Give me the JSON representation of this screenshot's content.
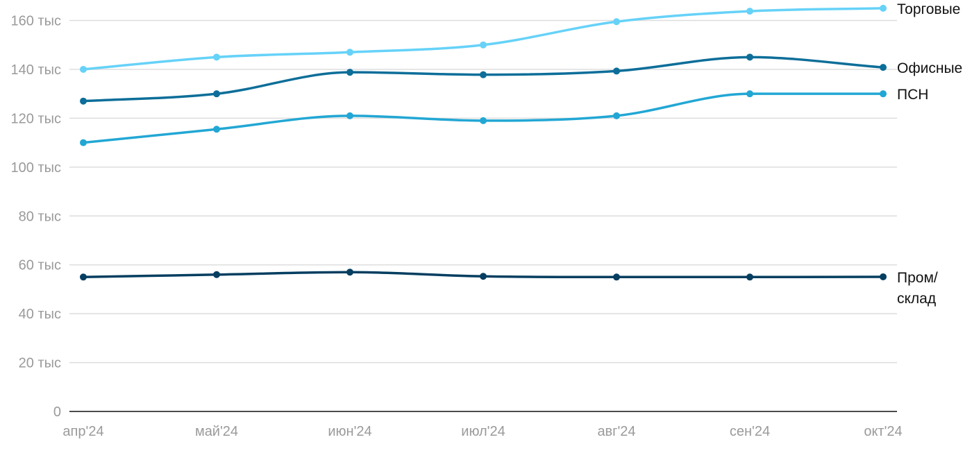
{
  "chart_data": {
    "type": "line",
    "title": "",
    "xlabel": "",
    "ylabel": "",
    "categories": [
      "апр'24",
      "май'24",
      "июн'24",
      "июл'24",
      "авг'24",
      "сен'24",
      "окт'24"
    ],
    "ylim": [
      0,
      165000
    ],
    "yticks": [
      {
        "value": 0,
        "label": "0"
      },
      {
        "value": 20000,
        "label": "20 тыс"
      },
      {
        "value": 40000,
        "label": "40 тыс"
      },
      {
        "value": 60000,
        "label": "60 тыс"
      },
      {
        "value": 80000,
        "label": "80 тыс"
      },
      {
        "value": 100000,
        "label": "100 тыс"
      },
      {
        "value": 120000,
        "label": "120 тыс"
      },
      {
        "value": 140000,
        "label": "140 тыс"
      },
      {
        "value": 160000,
        "label": "160 тыс"
      }
    ],
    "grid": true,
    "legend": "direct labels at line ends",
    "series": [
      {
        "name": "Торговые",
        "label_lines": [
          "Торговые"
        ],
        "color": "#66d2f8",
        "values": [
          140000,
          145000,
          147000,
          150000,
          159500,
          163800,
          165000
        ]
      },
      {
        "name": "Офисные",
        "label_lines": [
          "Офисные"
        ],
        "color": "#0d6e99",
        "values": [
          127000,
          130000,
          138800,
          137800,
          139300,
          145000,
          140800
        ]
      },
      {
        "name": "ПСН",
        "label_lines": [
          "ПСН"
        ],
        "color": "#22a7d4",
        "values": [
          110000,
          115500,
          121000,
          119000,
          121000,
          130000,
          130000
        ]
      },
      {
        "name": "Пром/склад",
        "label_lines": [
          "Пром/",
          "склад"
        ],
        "color": "#053e60",
        "values": [
          55000,
          56000,
          57000,
          55300,
          55000,
          55000,
          55100
        ]
      }
    ]
  }
}
